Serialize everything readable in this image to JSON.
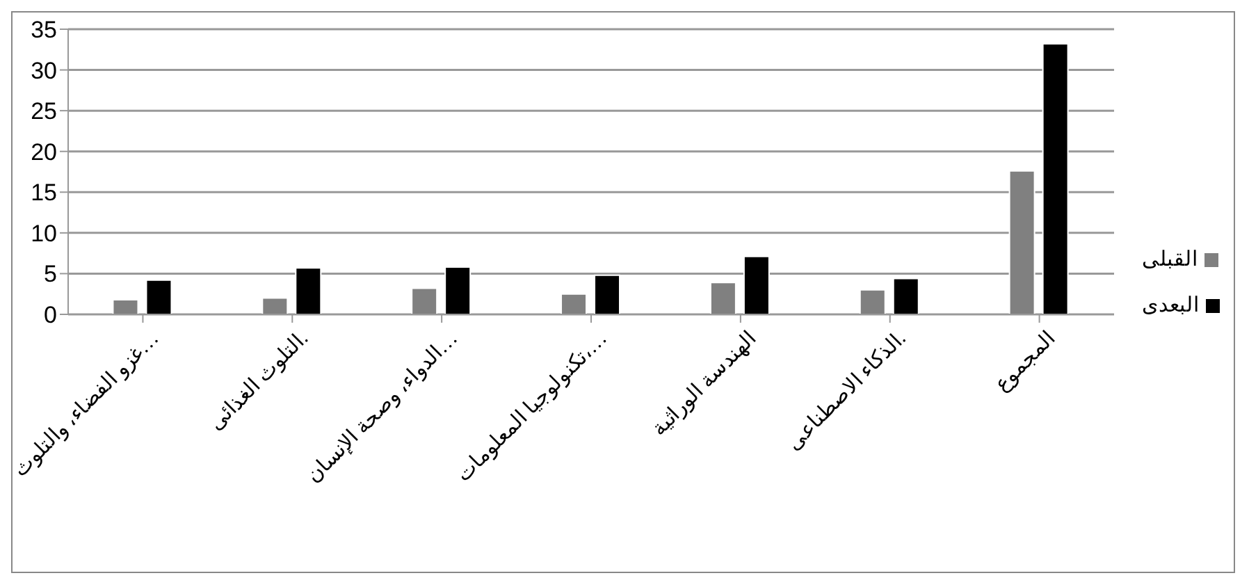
{
  "chart_data": {
    "type": "bar",
    "categories": [
      "غزو الفضاء، والتلوث…",
      "التلوث الغذائى.",
      "الدواء، وصحة الإنسان…",
      "تكنولوجيا المعلومات،…",
      "الهندسة الوراثية",
      "الذكاء الاصطناعى.",
      "المجموع"
    ],
    "series": [
      {
        "name": "القبلى",
        "color": "#808080",
        "values": [
          1.8,
          2.0,
          3.2,
          2.5,
          3.9,
          3.0,
          17.6
        ]
      },
      {
        "name": "البعدى",
        "color": "#000000",
        "values": [
          4.2,
          5.7,
          5.8,
          4.8,
          7.1,
          4.4,
          33.2
        ]
      }
    ],
    "ylim": [
      0,
      35
    ],
    "yticks": [
      0,
      5,
      10,
      15,
      20,
      25,
      30,
      35
    ],
    "grid": "y",
    "legend": "right"
  }
}
